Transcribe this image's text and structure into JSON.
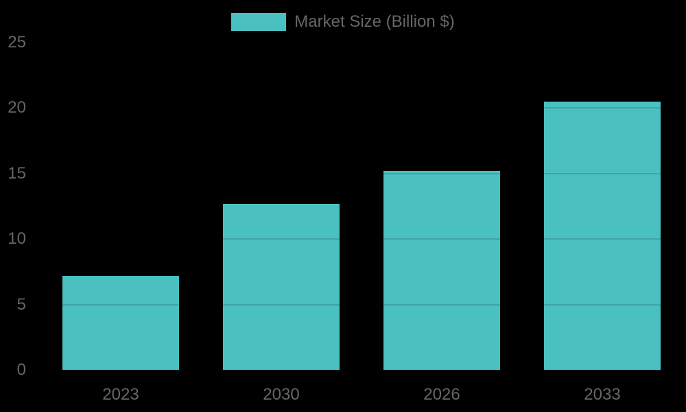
{
  "chart_data": {
    "type": "bar",
    "title": "",
    "categories": [
      "2023",
      "2030",
      "2026",
      "2033"
    ],
    "series": [
      {
        "name": "Market Size (Billion $)",
        "values": [
          7.2,
          12.7,
          15.2,
          20.5
        ],
        "color": "#4BC0C0"
      }
    ],
    "xlabel": "",
    "ylabel": "",
    "ylim": [
      0,
      25
    ],
    "yticks": [
      "0",
      "5",
      "10",
      "15",
      "20",
      "25"
    ],
    "grid": true,
    "gridline_color": "rgba(0,0,0,0.14)",
    "legend_position": "top-center",
    "background_color": "#000000",
    "tick_text_color": "#666666"
  },
  "legend": {
    "label": "Market Size (Billion $)",
    "swatch_color": "#4BC0C0"
  }
}
